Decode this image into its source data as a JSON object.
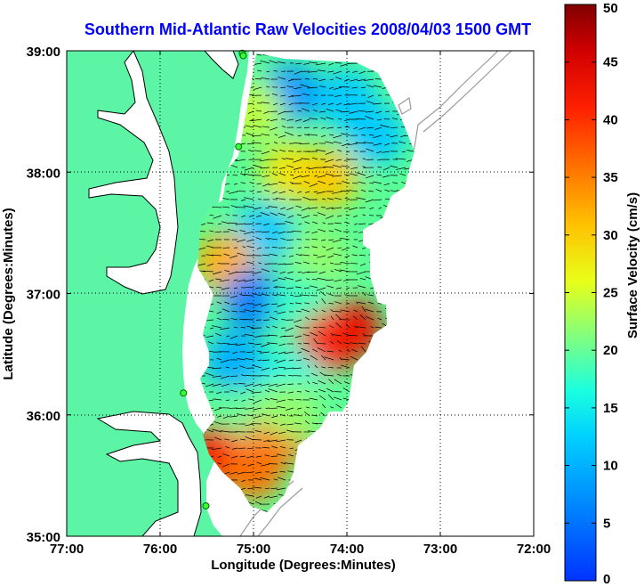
{
  "chart_data": {
    "type": "heatmap",
    "title": "Southern Mid-Atlantic Raw Velocities 2008/04/03 1500 GMT",
    "xlabel": "Longitude (Degrees:Minutes)",
    "ylabel": "Latitude (Degrees:Minutes)",
    "xlim": [
      -77,
      -72
    ],
    "ylim": [
      35,
      39
    ],
    "x_ticks": [
      -77,
      -76,
      -75,
      -74,
      -73,
      -72
    ],
    "x_tick_labels": [
      "77:00",
      "76:00",
      "75:00",
      "74:00",
      "73:00",
      "72:00"
    ],
    "y_ticks": [
      35,
      36,
      37,
      38,
      39
    ],
    "y_tick_labels": [
      "35:00",
      "36:00",
      "37:00",
      "38:00",
      "39:00"
    ],
    "grid": "dotted",
    "colorbar": {
      "label": "Surface Velocity (cm/s)",
      "min": 0,
      "max": 50,
      "ticks": [
        0,
        5,
        10,
        15,
        20,
        25,
        30,
        35,
        40,
        45,
        50
      ],
      "colormap": "jet"
    },
    "land_color": "#5cf5a6",
    "hf_radar_sites": [
      {
        "lon": -75.12,
        "lat": 38.98
      },
      {
        "lon": -75.11,
        "lat": 38.96
      },
      {
        "lon": -75.16,
        "lat": 38.21
      },
      {
        "lon": -75.75,
        "lat": 36.18
      },
      {
        "lon": -75.51,
        "lat": 35.25
      }
    ],
    "velocity_field_samples": [
      {
        "lon": -74.6,
        "lat": 38.65,
        "speed": 8
      },
      {
        "lon": -74.0,
        "lat": 38.6,
        "speed": 12
      },
      {
        "lon": -73.7,
        "lat": 38.3,
        "speed": 12
      },
      {
        "lon": -75.0,
        "lat": 38.5,
        "speed": 24
      },
      {
        "lon": -74.6,
        "lat": 38.0,
        "speed": 28
      },
      {
        "lon": -74.2,
        "lat": 37.95,
        "speed": 30
      },
      {
        "lon": -74.9,
        "lat": 37.5,
        "speed": 12
      },
      {
        "lon": -74.3,
        "lat": 37.3,
        "speed": 22
      },
      {
        "lon": -75.3,
        "lat": 37.25,
        "speed": 32
      },
      {
        "lon": -75.0,
        "lat": 36.95,
        "speed": 6
      },
      {
        "lon": -74.5,
        "lat": 36.9,
        "speed": 18
      },
      {
        "lon": -73.95,
        "lat": 36.7,
        "speed": 44
      },
      {
        "lon": -74.2,
        "lat": 36.6,
        "speed": 42
      },
      {
        "lon": -75.2,
        "lat": 36.45,
        "speed": 10
      },
      {
        "lon": -74.6,
        "lat": 36.3,
        "speed": 16
      },
      {
        "lon": -75.0,
        "lat": 36.0,
        "speed": 20
      },
      {
        "lon": -75.4,
        "lat": 35.65,
        "speed": 42
      },
      {
        "lon": -75.0,
        "lat": 35.55,
        "speed": 36
      },
      {
        "lon": -74.7,
        "lat": 35.85,
        "speed": 36
      },
      {
        "lon": -74.6,
        "lat": 36.05,
        "speed": 22
      }
    ]
  }
}
